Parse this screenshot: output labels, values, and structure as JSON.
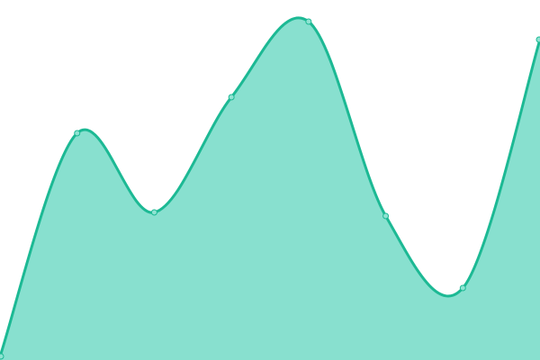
{
  "chart_data": {
    "type": "area",
    "title": "",
    "xlabel": "",
    "ylabel": "",
    "x": [
      0,
      1,
      2,
      3,
      4,
      5,
      6,
      7
    ],
    "values": [
      1,
      63,
      41,
      73,
      94,
      40,
      20,
      89
    ],
    "ylim": [
      0,
      100
    ],
    "grid": false,
    "legend": "none",
    "smooth": true,
    "colors": {
      "line": "#1cb994",
      "fill": "#88e0cf",
      "marker_fill": "#8fe3d2",
      "marker_stroke": "#1cb994"
    }
  }
}
